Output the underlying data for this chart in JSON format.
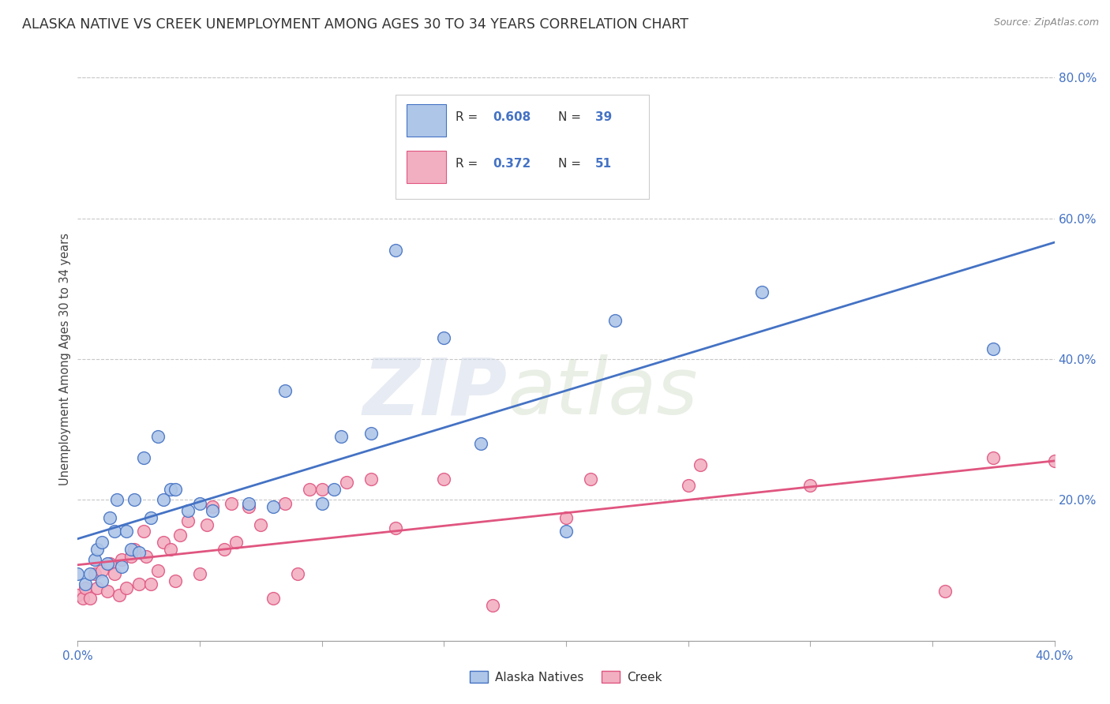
{
  "title": "ALASKA NATIVE VS CREEK UNEMPLOYMENT AMONG AGES 30 TO 34 YEARS CORRELATION CHART",
  "source": "Source: ZipAtlas.com",
  "ylabel": "Unemployment Among Ages 30 to 34 years",
  "xlim": [
    0.0,
    0.4
  ],
  "ylim": [
    0.0,
    0.8
  ],
  "alaska_R": 0.608,
  "alaska_N": 39,
  "creek_R": 0.372,
  "creek_N": 51,
  "alaska_color": "#aec6e8",
  "creek_color": "#f2afc2",
  "alaska_line_color": "#4472c4",
  "creek_line_color": "#e05580",
  "alaska_scatter_x": [
    0.0,
    0.003,
    0.005,
    0.007,
    0.008,
    0.01,
    0.01,
    0.012,
    0.013,
    0.015,
    0.016,
    0.018,
    0.02,
    0.022,
    0.023,
    0.025,
    0.027,
    0.03,
    0.033,
    0.035,
    0.038,
    0.04,
    0.045,
    0.05,
    0.055,
    0.07,
    0.08,
    0.085,
    0.1,
    0.105,
    0.108,
    0.12,
    0.13,
    0.15,
    0.165,
    0.2,
    0.22,
    0.28,
    0.375
  ],
  "alaska_scatter_y": [
    0.095,
    0.08,
    0.095,
    0.115,
    0.13,
    0.085,
    0.14,
    0.11,
    0.175,
    0.155,
    0.2,
    0.105,
    0.155,
    0.13,
    0.2,
    0.125,
    0.26,
    0.175,
    0.29,
    0.2,
    0.215,
    0.215,
    0.185,
    0.195,
    0.185,
    0.195,
    0.19,
    0.355,
    0.195,
    0.215,
    0.29,
    0.295,
    0.555,
    0.43,
    0.28,
    0.155,
    0.455,
    0.495,
    0.415
  ],
  "creek_scatter_x": [
    0.0,
    0.002,
    0.003,
    0.005,
    0.007,
    0.008,
    0.01,
    0.012,
    0.013,
    0.015,
    0.017,
    0.018,
    0.02,
    0.022,
    0.023,
    0.025,
    0.027,
    0.028,
    0.03,
    0.033,
    0.035,
    0.038,
    0.04,
    0.042,
    0.045,
    0.05,
    0.053,
    0.055,
    0.06,
    0.063,
    0.065,
    0.07,
    0.075,
    0.08,
    0.085,
    0.09,
    0.095,
    0.1,
    0.11,
    0.12,
    0.13,
    0.15,
    0.17,
    0.2,
    0.21,
    0.25,
    0.255,
    0.3,
    0.355,
    0.375,
    0.4
  ],
  "creek_scatter_y": [
    0.065,
    0.06,
    0.075,
    0.06,
    0.095,
    0.075,
    0.1,
    0.07,
    0.11,
    0.095,
    0.065,
    0.115,
    0.075,
    0.12,
    0.13,
    0.08,
    0.155,
    0.12,
    0.08,
    0.1,
    0.14,
    0.13,
    0.085,
    0.15,
    0.17,
    0.095,
    0.165,
    0.19,
    0.13,
    0.195,
    0.14,
    0.19,
    0.165,
    0.06,
    0.195,
    0.095,
    0.215,
    0.215,
    0.225,
    0.23,
    0.16,
    0.23,
    0.05,
    0.175,
    0.23,
    0.22,
    0.25,
    0.22,
    0.07,
    0.26,
    0.255
  ],
  "background_color": "#ffffff",
  "grid_color": "#c8c8c8",
  "watermark_zip": "ZIP",
  "watermark_atlas": "atlas",
  "legend_blue_label": "Alaska Natives",
  "legend_pink_label": "Creek",
  "title_fontsize": 12.5,
  "axis_label_fontsize": 10.5,
  "tick_fontsize": 11
}
